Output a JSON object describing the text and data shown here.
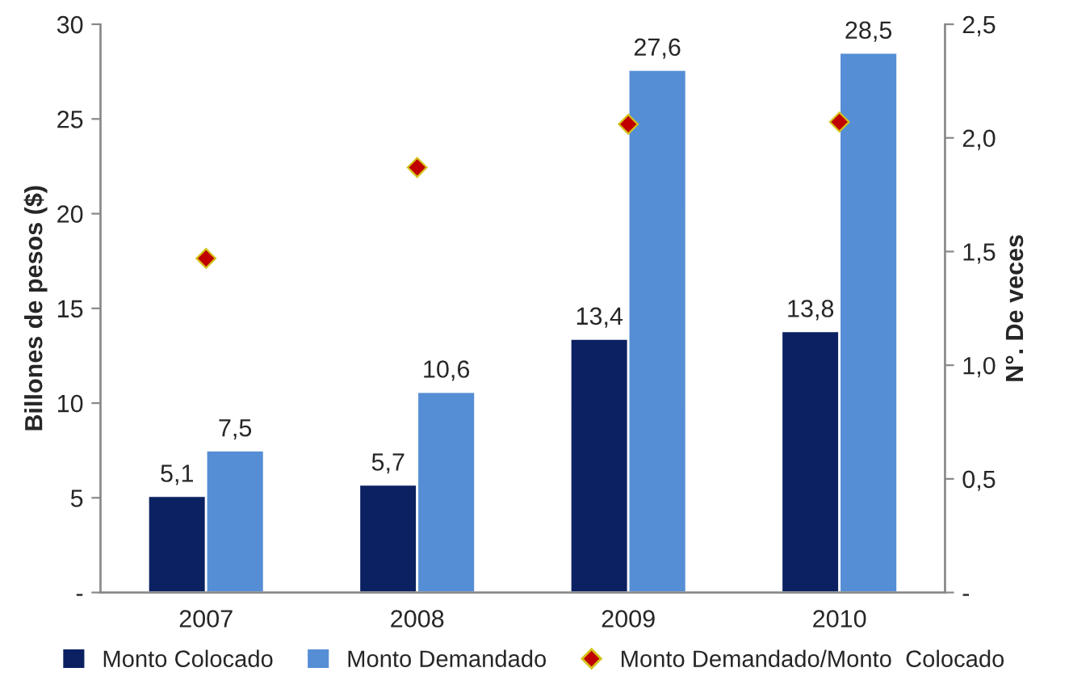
{
  "chart_data": {
    "type": "bar",
    "ylabel": "Billones de pesos ($)",
    "y2label": "N°. De veces",
    "categories": [
      "2007",
      "2008",
      "2009",
      "2010"
    ],
    "series": [
      {
        "name": "Monto Colocado",
        "color": "#0b2161",
        "values": [
          5.1,
          5.7,
          13.4,
          13.8
        ],
        "value_labels": [
          "5,1",
          "5,7",
          "13,4",
          "13,8"
        ]
      },
      {
        "name": "Monto Demandado",
        "color": "#558ed5",
        "values": [
          7.5,
          10.6,
          27.6,
          28.5
        ],
        "value_labels": [
          "7,5",
          "10,6",
          "27,6",
          "28,5"
        ]
      },
      {
        "name": "Monto Demandado/Monto  Colocado",
        "type": "scatter",
        "axis": "y2",
        "color": "#c00000",
        "marker": "diamond",
        "values": [
          1.47,
          1.87,
          2.06,
          2.07
        ]
      }
    ],
    "ylim": [
      0,
      30
    ],
    "yticks": [
      {
        "value": 0,
        "label": "-"
      },
      5,
      10,
      15,
      20,
      25,
      30
    ],
    "y2lim": [
      0,
      2.5
    ],
    "y2ticks": [
      {
        "value": 0,
        "label": "-"
      },
      {
        "value": 0.5,
        "label": "0,5"
      },
      {
        "value": 1.0,
        "label": "1,0"
      },
      {
        "value": 1.5,
        "label": "1,5"
      },
      {
        "value": 2.0,
        "label": "2,0"
      },
      {
        "value": 2.5,
        "label": "2,5"
      }
    ],
    "grid": false,
    "legend": "bottom"
  }
}
